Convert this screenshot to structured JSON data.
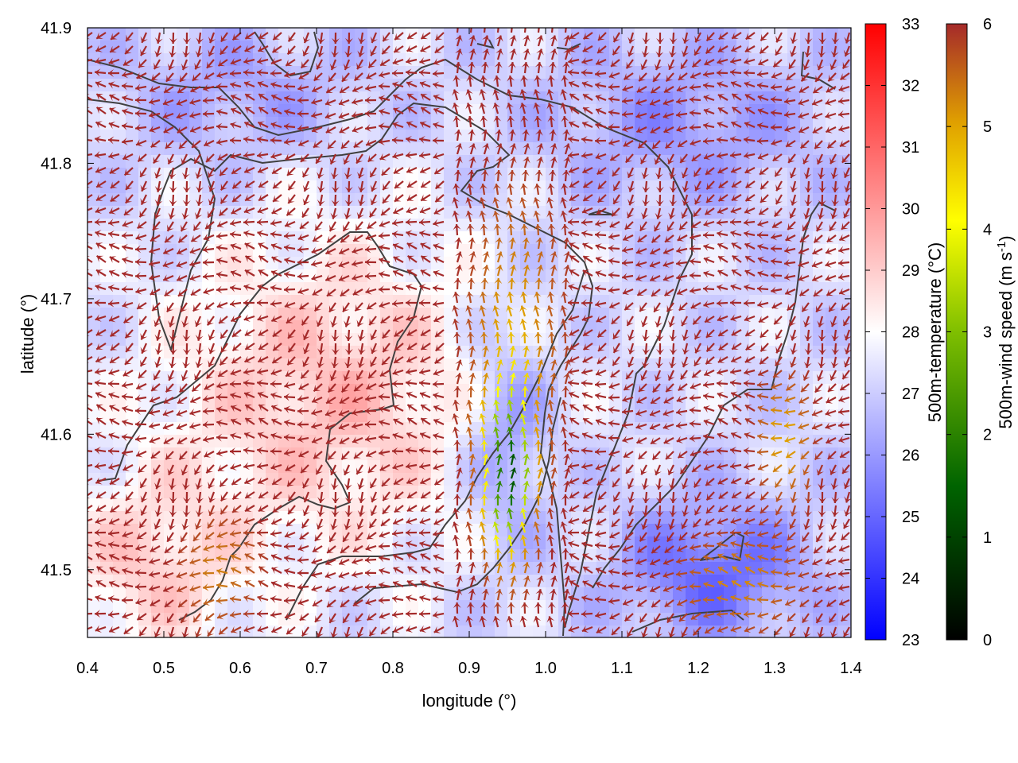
{
  "chart_data": {
    "type": "heatmap",
    "overlay": "vector-field",
    "xlabel": "longitude (°)",
    "ylabel": "latitude (°)",
    "xlim": [
      0.4,
      1.4
    ],
    "ylim": [
      41.45,
      41.9
    ],
    "x_ticks": [
      "0.4",
      "0.5",
      "0.6",
      "0.7",
      "0.8",
      "0.9",
      "1.0",
      "1.1",
      "1.2",
      "1.3",
      "1.4"
    ],
    "x_tick_values": [
      0.4,
      0.5,
      0.6,
      0.7,
      0.8,
      0.9,
      1.0,
      1.1,
      1.2,
      1.3,
      1.4
    ],
    "y_ticks": [
      "41.9",
      "41.8",
      "41.7",
      "41.6",
      "41.5"
    ],
    "y_tick_values": [
      41.9,
      41.8,
      41.7,
      41.6,
      41.5
    ],
    "grid": false,
    "temperature_colorbar": {
      "label": "500m-temperature (°C)",
      "range": [
        23,
        33
      ],
      "ticks": [
        "23",
        "24",
        "25",
        "26",
        "27",
        "28",
        "29",
        "30",
        "31",
        "32",
        "33"
      ],
      "colors": [
        "#0000ff",
        "#ffffff",
        "#ff0000"
      ]
    },
    "wind_colorbar": {
      "label": "500m-wind speed (m s-1)",
      "range": [
        0,
        6
      ],
      "ticks": [
        "0",
        "1",
        "2",
        "3",
        "4",
        "5",
        "6"
      ],
      "colors": [
        "#000000",
        "#006400",
        "#7fbf00",
        "#ffff00",
        "#e0a000",
        "#c06020",
        "#a52a2a"
      ]
    }
  }
}
